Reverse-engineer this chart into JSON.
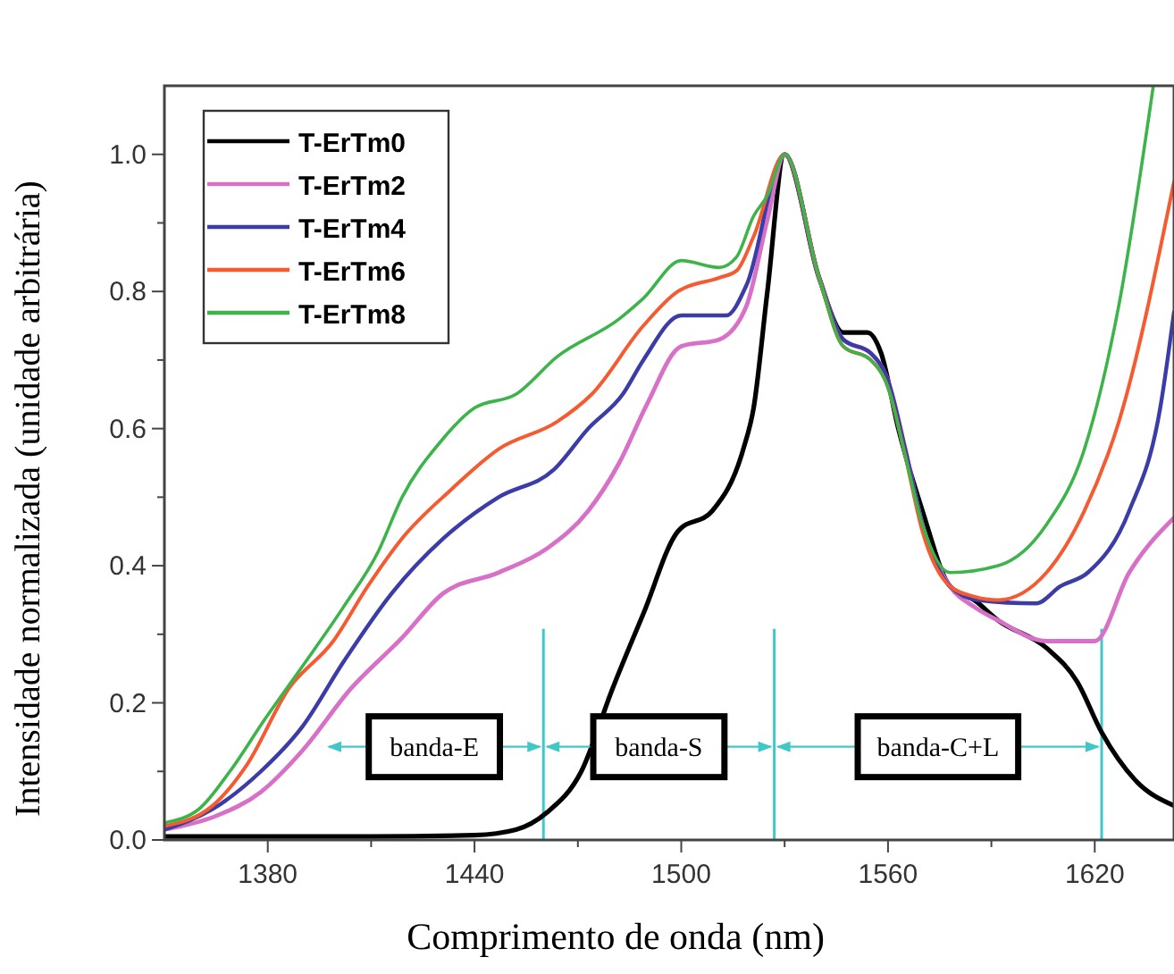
{
  "chart_data": {
    "type": "line",
    "xlabel": "Comprimento de onda (nm)",
    "ylabel": "Intensidade normalizada (unidade arbitrária)",
    "xlim": [
      1350,
      1643
    ],
    "ylim": [
      0,
      1.1
    ],
    "xticks": [
      1380,
      {
        "value": 1410,
        "label": null
      },
      1440,
      {
        "value": 1470,
        "label": null
      },
      1500,
      {
        "value": 1530,
        "label": null
      },
      1560,
      {
        "value": 1590,
        "label": null
      },
      1620
    ],
    "yticks": [
      {
        "value": 0,
        "label": "0.0"
      },
      {
        "value": 0.1,
        "label": null
      },
      0.2,
      {
        "value": 0.3,
        "label": null
      },
      0.4,
      {
        "value": 0.5,
        "label": null
      },
      0.6,
      {
        "value": 0.7,
        "label": null
      },
      0.8,
      {
        "value": 0.9,
        "label": null
      },
      {
        "value": 1,
        "label": "1.0"
      }
    ],
    "grid": false,
    "legend": "top left",
    "marker": "none",
    "line_style": "solid",
    "series": [
      {
        "name": "T-ErTm0",
        "color": "#000000",
        "x": [
          1350,
          1380,
          1410,
          1440,
          1452,
          1461,
          1471,
          1480,
          1489,
          1499,
          1509,
          1518,
          1521,
          1525,
          1530,
          1540,
          1547,
          1554,
          1558,
          1563,
          1570,
          1578,
          1585,
          1592,
          1606,
          1615,
          1622,
          1632,
          1643
        ],
        "values": [
          0.005,
          0.005,
          0.005,
          0.007,
          0.015,
          0.04,
          0.1,
          0.22,
          0.33,
          0.45,
          0.48,
          0.57,
          0.63,
          0.8,
          1.0,
          0.82,
          0.74,
          0.74,
          0.71,
          0.6,
          0.48,
          0.37,
          0.35,
          0.32,
          0.28,
          0.23,
          0.157,
          0.086,
          0.05
        ]
      },
      {
        "name": "T-ErTm2",
        "color": "#d970c8",
        "x": [
          1350,
          1365,
          1378,
          1390,
          1404,
          1419,
          1431,
          1447,
          1461,
          1473,
          1482,
          1490,
          1500,
          1511,
          1519,
          1525,
          1530,
          1540,
          1547,
          1555,
          1560,
          1565,
          1570,
          1578,
          1585,
          1592,
          1606,
          1620,
          1630,
          1643
        ],
        "values": [
          0.015,
          0.035,
          0.07,
          0.13,
          0.22,
          0.295,
          0.36,
          0.39,
          0.425,
          0.48,
          0.55,
          0.635,
          0.72,
          0.73,
          0.78,
          0.905,
          1.0,
          0.82,
          0.73,
          0.71,
          0.67,
          0.57,
          0.46,
          0.37,
          0.34,
          0.32,
          0.29,
          0.29,
          0.39,
          0.47
        ]
      },
      {
        "name": "T-ErTm4",
        "color": "#3c3ca8",
        "x": [
          1350,
          1364,
          1378,
          1390,
          1402,
          1416,
          1431,
          1447,
          1463,
          1473,
          1483,
          1489,
          1500,
          1513,
          1519,
          1530,
          1540,
          1547,
          1555,
          1560,
          1565,
          1570,
          1578,
          1586,
          1603,
          1610,
          1618,
          1630,
          1639,
          1643
        ],
        "values": [
          0.015,
          0.045,
          0.1,
          0.165,
          0.26,
          0.36,
          0.44,
          0.5,
          0.54,
          0.6,
          0.65,
          0.7,
          0.765,
          0.765,
          0.81,
          1.0,
          0.82,
          0.73,
          0.71,
          0.67,
          0.57,
          0.46,
          0.37,
          0.35,
          0.345,
          0.37,
          0.39,
          0.48,
          0.63,
          0.77
        ]
      },
      {
        "name": "T-ErTm6",
        "color": "#f55a30",
        "x": [
          1350,
          1364,
          1374,
          1386,
          1399,
          1409,
          1419,
          1433,
          1447,
          1464,
          1474,
          1489,
          1499,
          1511,
          1516,
          1521,
          1530,
          1540,
          1547,
          1555,
          1560,
          1565,
          1570,
          1578,
          1585,
          1592,
          1606,
          1617,
          1627,
          1643
        ],
        "values": [
          0.02,
          0.05,
          0.11,
          0.22,
          0.29,
          0.37,
          0.44,
          0.51,
          0.57,
          0.61,
          0.65,
          0.75,
          0.8,
          0.82,
          0.83,
          0.88,
          1.0,
          0.82,
          0.72,
          0.7,
          0.66,
          0.56,
          0.45,
          0.37,
          0.355,
          0.35,
          0.39,
          0.48,
          0.61,
          0.96
        ]
      },
      {
        "name": "T-ErTm8",
        "color": "#3cb44a",
        "x": [
          1350,
          1360,
          1369,
          1379,
          1391,
          1402,
          1412,
          1419,
          1430,
          1440,
          1452,
          1464,
          1482,
          1489,
          1500,
          1511,
          1516,
          1521,
          1525,
          1530,
          1540,
          1547,
          1555,
          1560,
          1565,
          1570,
          1578,
          1592,
          1606,
          1617,
          1627,
          1637
        ],
        "values": [
          0.025,
          0.045,
          0.1,
          0.175,
          0.26,
          0.34,
          0.42,
          0.5,
          0.58,
          0.63,
          0.65,
          0.705,
          0.76,
          0.79,
          0.845,
          0.835,
          0.85,
          0.91,
          0.94,
          1.0,
          0.82,
          0.72,
          0.7,
          0.66,
          0.56,
          0.46,
          0.39,
          0.4,
          0.46,
          0.57,
          0.78,
          1.1
        ]
      }
    ],
    "ref_lines": [
      {
        "axis": "x",
        "value": 1460,
        "color": "#40c8c8"
      },
      {
        "axis": "x",
        "value": 1527,
        "color": "#40c8c8"
      },
      {
        "axis": "x",
        "value": 1622,
        "color": "#40c8c8"
      }
    ],
    "annotations": [
      {
        "text": "banda-E",
        "x": 1460,
        "y": 0.136
      },
      {
        "text": "banda-S",
        "x": 1527,
        "y": 0.136
      },
      {
        "text": "banda-C+L",
        "x": 1622,
        "y": 0.136
      }
    ]
  }
}
